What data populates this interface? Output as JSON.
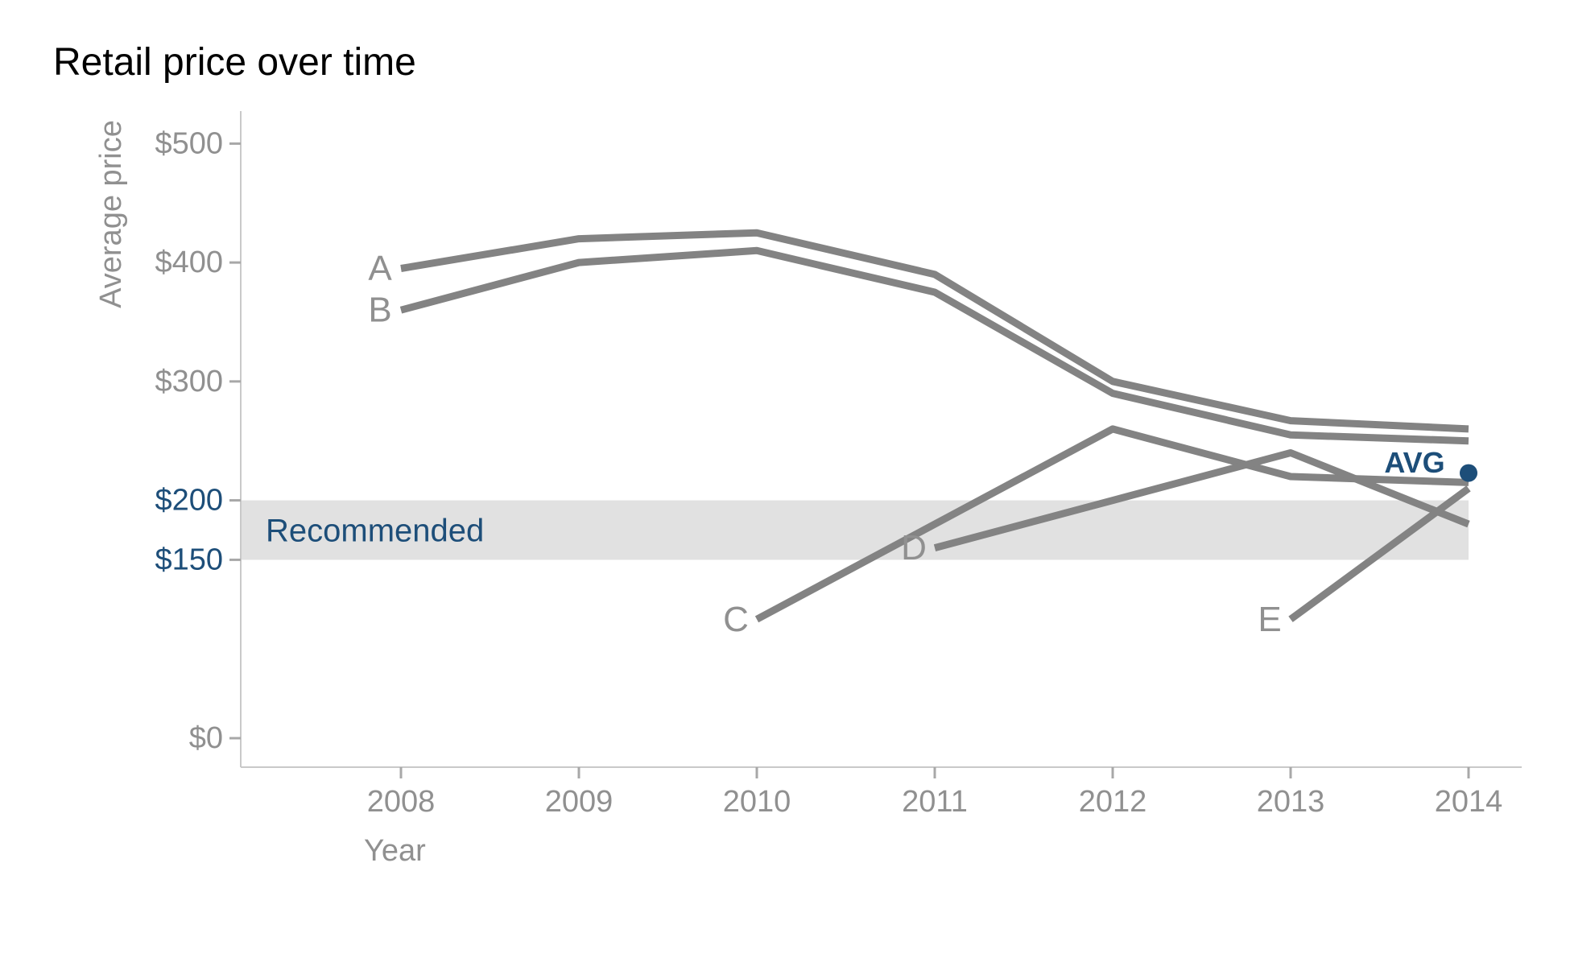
{
  "chart_data": {
    "type": "line",
    "title": "Retail price over time",
    "xlabel": "Year",
    "ylabel": "Average price",
    "x_ticks": [
      2008,
      2009,
      2010,
      2011,
      2012,
      2013,
      2014
    ],
    "xlim": [
      2007.1,
      2014.3
    ],
    "ylim": [
      0,
      527
    ],
    "grid": false,
    "legend_position": "inline-left-of-first-point",
    "y_ticks": [
      {
        "label": "$500",
        "value": 500,
        "highlight": false
      },
      {
        "label": "$400",
        "value": 400,
        "highlight": false
      },
      {
        "label": "$300",
        "value": 300,
        "highlight": false
      },
      {
        "label": "$200",
        "value": 200,
        "highlight": true
      },
      {
        "label": "$150",
        "value": 150,
        "highlight": true
      },
      {
        "label": "$0",
        "value": 0,
        "highlight": false
      }
    ],
    "band": {
      "label": "Recommended",
      "from": 150,
      "to": 200
    },
    "series": [
      {
        "name": "A",
        "points": [
          [
            2008,
            395
          ],
          [
            2009,
            420
          ],
          [
            2010,
            425
          ],
          [
            2011,
            390
          ],
          [
            2012,
            300
          ],
          [
            2013,
            267
          ],
          [
            2014,
            260
          ]
        ]
      },
      {
        "name": "B",
        "points": [
          [
            2008,
            360
          ],
          [
            2009,
            400
          ],
          [
            2010,
            410
          ],
          [
            2011,
            375
          ],
          [
            2012,
            290
          ],
          [
            2013,
            255
          ],
          [
            2014,
            250
          ]
        ]
      },
      {
        "name": "C",
        "points": [
          [
            2010,
            100
          ],
          [
            2011,
            180
          ],
          [
            2012,
            260
          ],
          [
            2013,
            220
          ],
          [
            2014,
            215
          ]
        ]
      },
      {
        "name": "D",
        "points": [
          [
            2011,
            160
          ],
          [
            2012,
            200
          ],
          [
            2013,
            240
          ],
          [
            2014,
            180
          ]
        ]
      },
      {
        "name": "E",
        "points": [
          [
            2013,
            100
          ],
          [
            2014,
            210
          ]
        ]
      }
    ],
    "avg_marker": {
      "label": "AVG",
      "year": 2014,
      "value": 223
    }
  },
  "colors": {
    "navy": "#1d4e79",
    "line_gray": "#838383",
    "text_gray": "#909090",
    "band_gray": "#e1e1e1",
    "axis_gray": "#c9c9c9",
    "tick_gray": "#a8a8a8",
    "title_black": "#000000",
    "background": "#ffffff"
  }
}
